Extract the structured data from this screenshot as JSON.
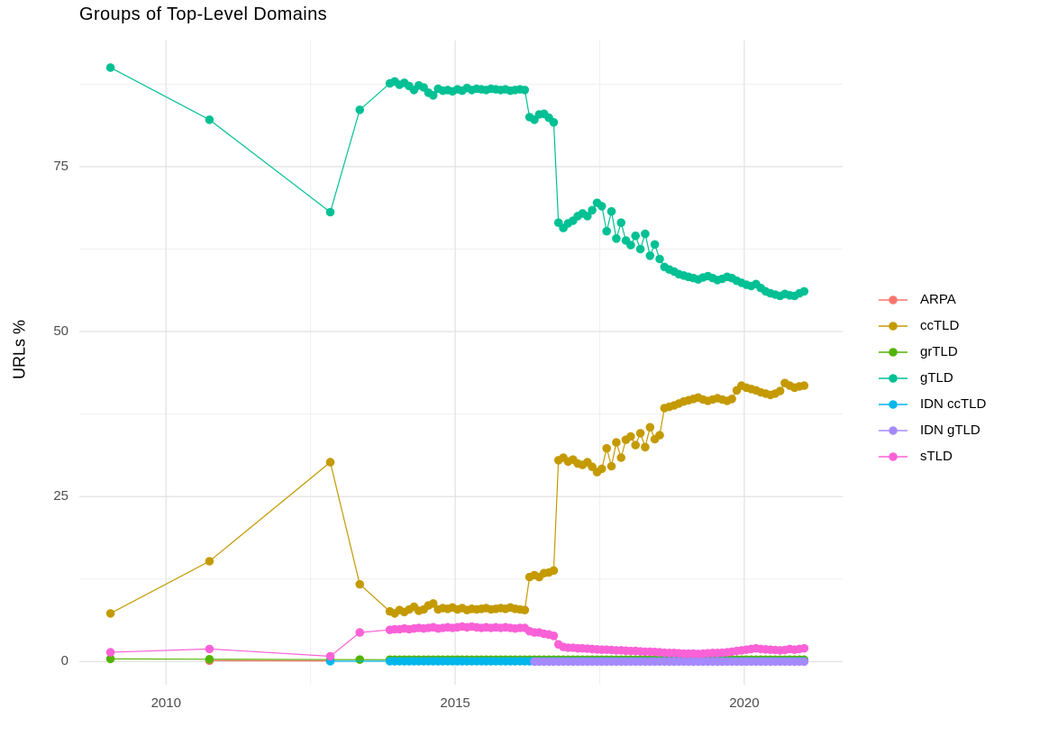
{
  "title": "Groups of Top-Level Domains",
  "chart_data": {
    "type": "line",
    "title": "Groups of Top-Level Domains",
    "xlabel": "",
    "ylabel": "URLs %",
    "xlim": [
      2008.5,
      2021.7
    ],
    "ylim": [
      -3.5,
      94.1
    ],
    "x_ticks": [
      2010,
      2015,
      2020
    ],
    "x_tick_labels": [
      "2010",
      "2015",
      "2020"
    ],
    "x_minor_gridlines": [
      2012.5,
      2017.5
    ],
    "y_ticks": [
      0,
      25,
      50,
      75
    ],
    "y_tick_labels": [
      "0",
      "25",
      "50",
      "75"
    ],
    "y_minor_gridlines": [
      12.5,
      37.5,
      62.5,
      87.5
    ],
    "grid": true,
    "legend_position": "right",
    "colors": {
      "major_grid": "#e3e3e3",
      "minor_grid": "#f0f0f0",
      "tick_text": "#4d4d4d",
      "background": "#ffffff"
    },
    "series": [
      {
        "name": "ARPA",
        "color": "#F8766D",
        "points": [
          [
            2010.75,
            0.15
          ],
          [
            2012.84,
            0.1
          ]
        ]
      },
      {
        "name": "ccTLD",
        "color": "#C49A00",
        "points": [
          [
            2009.04,
            7.3
          ],
          [
            2010.75,
            15.2
          ],
          [
            2012.84,
            30.2
          ],
          [
            2013.35,
            11.7
          ]
        ],
        "dense": {
          "x_start": 2013.871,
          "x_step": 0.0833,
          "values": [
            7.6,
            7.3,
            7.8,
            7.5,
            7.9,
            8.3,
            7.7,
            7.9,
            8.5,
            8.8,
            7.9,
            8.1,
            8.0,
            8.2,
            7.9,
            8.1,
            7.8,
            8.0,
            7.9,
            8.0,
            8.1,
            7.9,
            8.0,
            8.1,
            8.0,
            8.2,
            8.0,
            7.9,
            7.8,
            12.8,
            13.1,
            12.8,
            13.4,
            13.5,
            13.8,
            30.5,
            30.9,
            30.3,
            30.6,
            30.0,
            29.8,
            30.2,
            29.5,
            28.7,
            29.2,
            32.3,
            29.6,
            33.2,
            30.9,
            33.6,
            34.1,
            32.8,
            34.6,
            32.5,
            35.5,
            33.7,
            34.3,
            38.4,
            38.6,
            38.8,
            39.1,
            39.4,
            39.6,
            39.8,
            40.0,
            39.7,
            39.5,
            39.7,
            39.9,
            39.7,
            39.5,
            39.8,
            41.1,
            41.8,
            41.5,
            41.3,
            41.1,
            40.8,
            40.6,
            40.4,
            40.6,
            41.0,
            42.2,
            41.8,
            41.5,
            41.7,
            41.8
          ]
        }
      },
      {
        "name": "grTLD",
        "color": "#53B400",
        "points": [
          [
            2009.04,
            0.4
          ],
          [
            2010.75,
            0.35
          ],
          [
            2012.84,
            0.3
          ],
          [
            2013.35,
            0.3
          ]
        ],
        "dense": {
          "x_start": 2013.871,
          "x_step": 0.0833,
          "constant": 0.28,
          "count": 87
        }
      },
      {
        "name": "gTLD",
        "color": "#00C094",
        "points": [
          [
            2009.04,
            90.0
          ],
          [
            2010.75,
            82.1
          ],
          [
            2012.84,
            68.1
          ],
          [
            2013.35,
            83.6
          ]
        ],
        "dense": {
          "x_start": 2013.871,
          "x_step": 0.0833,
          "values": [
            87.6,
            87.9,
            87.4,
            87.7,
            87.2,
            86.6,
            87.3,
            87.0,
            86.2,
            85.8,
            86.8,
            86.5,
            86.6,
            86.4,
            86.7,
            86.5,
            86.9,
            86.6,
            86.8,
            86.7,
            86.6,
            86.8,
            86.7,
            86.6,
            86.7,
            86.5,
            86.6,
            86.7,
            86.6,
            82.5,
            82.1,
            82.9,
            83.0,
            82.4,
            81.7,
            66.5,
            65.7,
            66.4,
            66.8,
            67.5,
            67.9,
            67.5,
            68.4,
            69.5,
            69.0,
            65.2,
            68.2,
            64.1,
            66.5,
            63.8,
            63.1,
            64.5,
            62.5,
            64.8,
            61.5,
            63.2,
            61.0,
            59.8,
            59.4,
            59.1,
            58.7,
            58.5,
            58.3,
            58.1,
            57.9,
            58.2,
            58.4,
            58.1,
            57.8,
            58.0,
            58.3,
            58.1,
            57.7,
            57.4,
            57.1,
            56.9,
            57.2,
            56.6,
            56.1,
            55.8,
            55.6,
            55.4,
            55.7,
            55.5,
            55.4,
            55.8,
            56.1
          ]
        }
      },
      {
        "name": "IDN ccTLD",
        "color": "#00B6EB",
        "points": [
          [
            2012.84,
            0.05
          ]
        ],
        "dense": {
          "x_start": 2013.871,
          "x_step": 0.0833,
          "constant": 0.05,
          "count": 87
        }
      },
      {
        "name": "IDN gTLD",
        "color": "#A58AFF",
        "points": [],
        "dense": {
          "x_start": 2016.371,
          "x_step": 0.0833,
          "constant": 0.0,
          "count": 57
        }
      },
      {
        "name": "sTLD",
        "color": "#FB61D7",
        "points": [
          [
            2009.04,
            1.4
          ],
          [
            2010.75,
            1.9
          ],
          [
            2012.84,
            0.8
          ],
          [
            2013.35,
            4.4
          ]
        ],
        "dense": {
          "x_start": 2013.871,
          "x_step": 0.0833,
          "values": [
            4.8,
            4.9,
            4.9,
            5.0,
            4.9,
            5.0,
            5.1,
            5.0,
            5.1,
            5.2,
            5.0,
            5.1,
            5.2,
            5.1,
            5.2,
            5.3,
            5.2,
            5.3,
            5.2,
            5.1,
            5.2,
            5.1,
            5.2,
            5.1,
            5.2,
            5.1,
            5.0,
            5.1,
            5.1,
            4.6,
            4.4,
            4.4,
            4.2,
            4.1,
            3.9,
            2.6,
            2.2,
            2.1,
            2.1,
            2.0,
            2.0,
            1.95,
            1.9,
            1.85,
            1.8,
            1.8,
            1.75,
            1.7,
            1.7,
            1.65,
            1.6,
            1.6,
            1.55,
            1.5,
            1.5,
            1.45,
            1.4,
            1.35,
            1.3,
            1.3,
            1.25,
            1.2,
            1.2,
            1.2,
            1.15,
            1.2,
            1.25,
            1.3,
            1.3,
            1.35,
            1.4,
            1.5,
            1.6,
            1.7,
            1.8,
            1.9,
            2.0,
            1.9,
            1.85,
            1.8,
            1.75,
            1.7,
            1.75,
            1.9,
            1.8,
            1.9,
            2.0
          ]
        }
      }
    ]
  }
}
